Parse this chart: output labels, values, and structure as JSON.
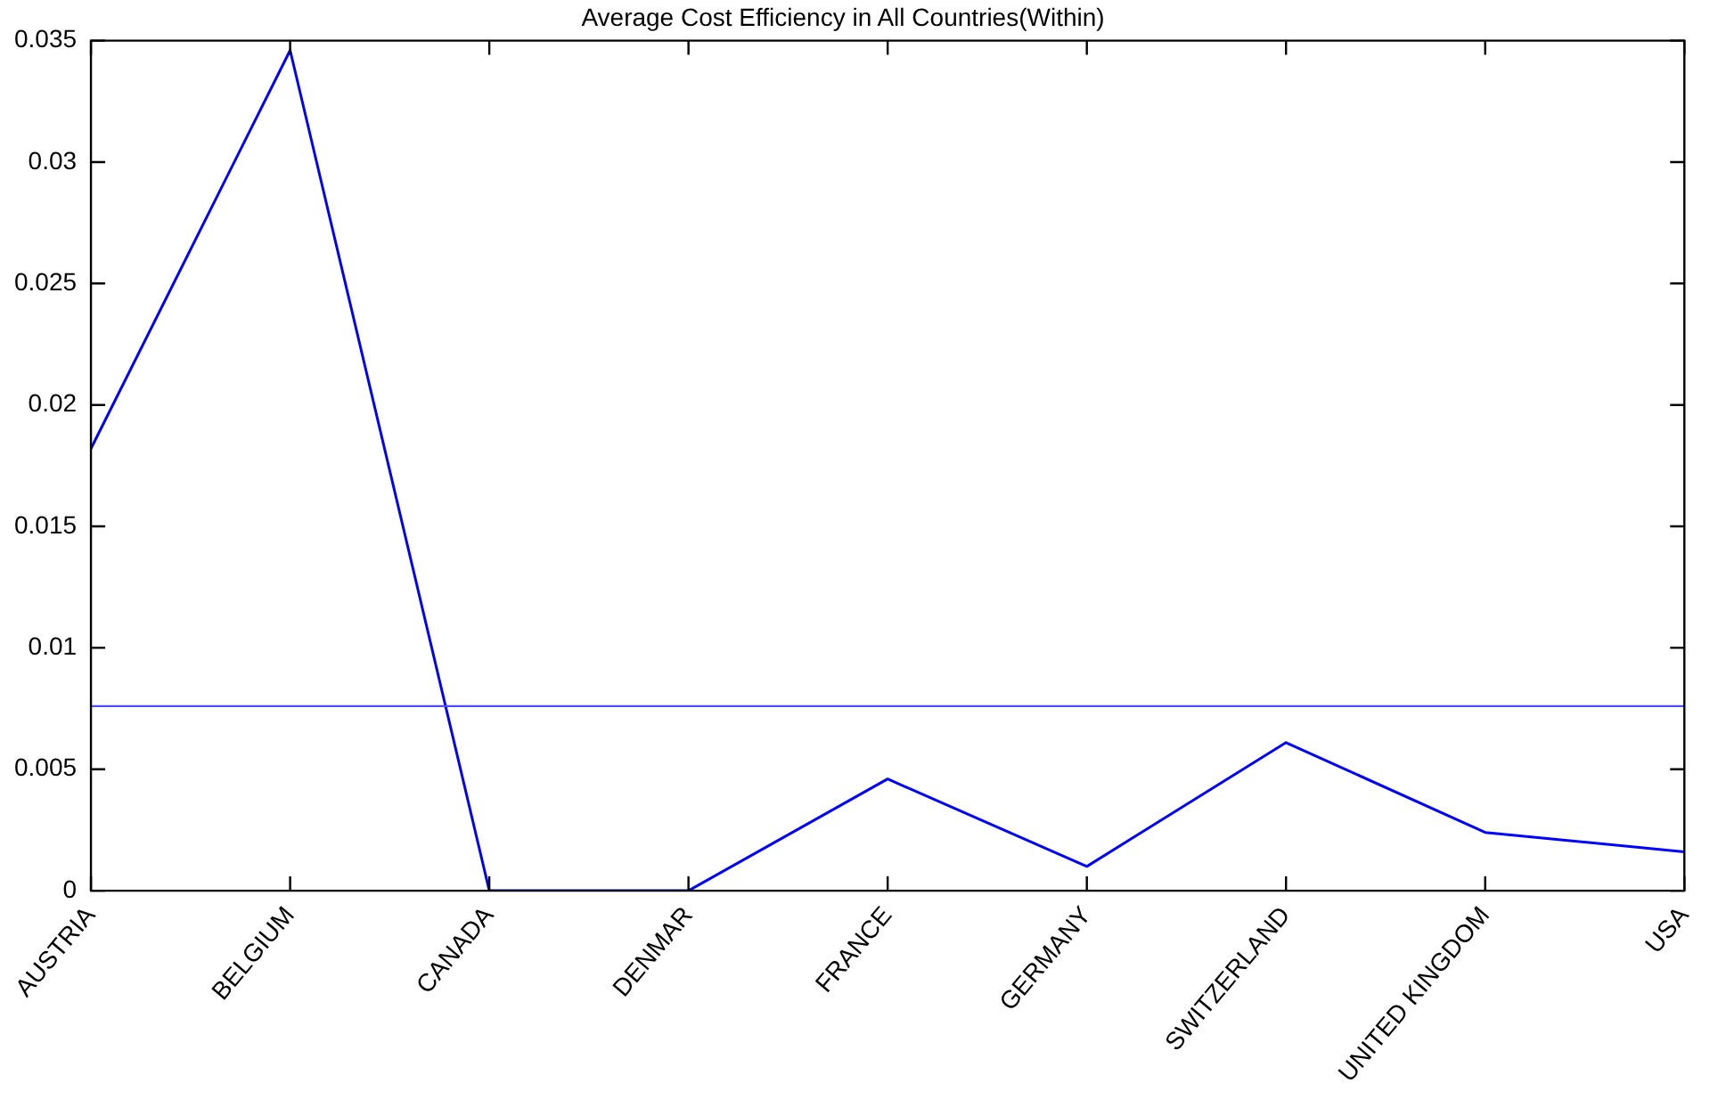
{
  "chart_data": {
    "type": "line",
    "title": "Average Cost Efficiency in All Countries(Within)",
    "categories": [
      "AUSTRIA",
      "BELGIUM",
      "CANADA",
      "DENMAR",
      "FRANCE",
      "GERMANY",
      "SWITZERLAND",
      "UNITED KINGDOM",
      "USA"
    ],
    "series": [
      {
        "color": "#0000ff",
        "values": [
          0.0182,
          0.0346,
          0,
          0,
          0.0046,
          0.001,
          0.0061,
          0.0024,
          0.0016
        ]
      }
    ],
    "ylim": [
      0,
      0.035
    ],
    "yticks": [
      0,
      0.005,
      0.01,
      0.015,
      0.02,
      0.025,
      0.03,
      0.035
    ],
    "ref_lines": [
      {
        "axis": "y",
        "value": 0.0076,
        "color": "#4d4dff"
      }
    ],
    "grid": false,
    "legend": false,
    "marker": "none",
    "line_style": "solid"
  }
}
